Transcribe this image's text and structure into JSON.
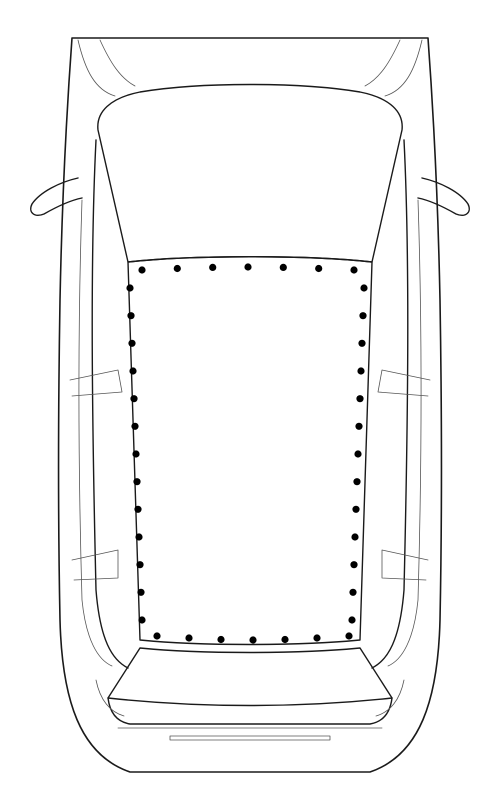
{
  "figure": {
    "subject": "car-top-view",
    "line_color": "#1a1a1a",
    "fastener_color": "#000000",
    "fasteners": {
      "top_edge": 7,
      "bottom_edge": 7,
      "left_edge": 13,
      "right_edge": 13
    }
  }
}
